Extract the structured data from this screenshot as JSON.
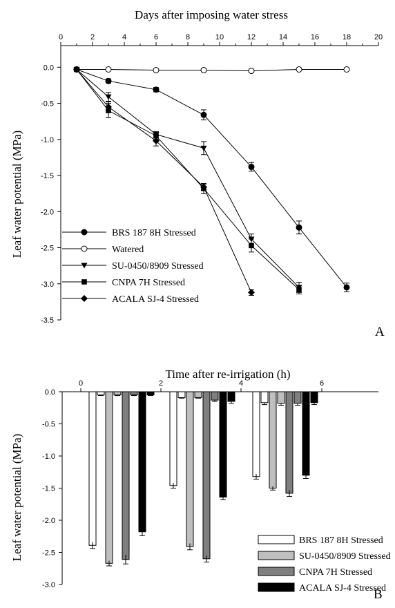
{
  "chart_data": [
    {
      "type": "line",
      "title": "Days after imposing water  stress",
      "xlabel": "Days after imposing water  stress",
      "ylabel": "Leaf water potential (MPa)",
      "xlim": [
        0,
        20
      ],
      "ylim": [
        -3.5,
        0.3
      ],
      "x_ticks": [
        "0",
        "2",
        "4",
        "6",
        "8",
        "10",
        "12",
        "14",
        "16",
        "18",
        "20"
      ],
      "y_ticks": [
        "0.0",
        "-0.5",
        "-1.0",
        "-1.5",
        "-2.0",
        "-2.5",
        "-3.0",
        "-3.5"
      ],
      "x_axis_position": "top",
      "grid": false,
      "legend_position": "bottom-left",
      "panel_label": "A",
      "series": [
        {
          "name": "BRS 187 8H Stressed",
          "marker": "filled-circle",
          "x": [
            1,
            3,
            6,
            9,
            12,
            15,
            18
          ],
          "y": [
            -0.03,
            -0.19,
            -0.31,
            -0.66,
            -1.38,
            -2.22,
            -3.05
          ],
          "err": [
            0.02,
            0.03,
            0.03,
            0.07,
            0.06,
            0.09,
            0.06
          ]
        },
        {
          "name": "Watered",
          "marker": "open-circle",
          "x": [
            1,
            3,
            6,
            9,
            12,
            15,
            18
          ],
          "y": [
            -0.03,
            -0.03,
            -0.04,
            -0.04,
            -0.05,
            -0.03,
            -0.03
          ],
          "err": [
            0.01,
            0.01,
            0.01,
            0.02,
            0.02,
            0.01,
            0.01
          ]
        },
        {
          "name": "SU-0450/8909  Stressed",
          "marker": "filled-triangle-down",
          "x": [
            1,
            3,
            6,
            9,
            12,
            15
          ],
          "y": [
            -0.03,
            -0.41,
            -0.93,
            -1.12,
            -2.38,
            -3.05
          ],
          "err": [
            0.02,
            0.06,
            0.04,
            0.09,
            0.07,
            0.07
          ]
        },
        {
          "name": "CNPA 7H Stressed",
          "marker": "filled-square",
          "x": [
            1,
            3,
            6,
            9,
            12,
            15
          ],
          "y": [
            -0.03,
            -0.6,
            -0.95,
            -1.68,
            -2.47,
            -3.08
          ],
          "err": [
            0.02,
            0.1,
            0.05,
            0.07,
            0.09,
            0.06
          ]
        },
        {
          "name": "ACALA SJ-4 Stressed",
          "marker": "filled-diamond",
          "x": [
            1,
            3,
            6,
            9,
            12
          ],
          "y": [
            -0.03,
            -0.55,
            -1.02,
            -1.66,
            -3.12
          ],
          "err": [
            0.02,
            0.07,
            0.07,
            0.04,
            0.04
          ]
        }
      ]
    },
    {
      "type": "bar",
      "title": "Time after re-irrigation (h)",
      "xlabel": "Time after re-irrigation (h)",
      "ylabel": "Leaf water potential (MPa)",
      "xlim": [
        0,
        8
      ],
      "ylim": [
        -3.0,
        0.0
      ],
      "x_ticks": [
        "0",
        "2",
        "4",
        "6"
      ],
      "y_ticks": [
        "0.0",
        "-0.5",
        "-1.0",
        "-1.5",
        "-2.0",
        "-2.5",
        "-3.0"
      ],
      "x_axis_position": "top",
      "grid": false,
      "legend_position": "bottom-right",
      "panel_label": "B",
      "group_centers": [
        0.75,
        3.25,
        6.75
      ],
      "series": [
        {
          "name": "BRS 187 8H  Stressed",
          "color": "#ffffff",
          "values": [
            -2.39,
            -1.46,
            -1.32
          ],
          "err": [
            0.05,
            0.04,
            0.04
          ],
          "control": [
            -0.05,
            -0.09,
            -0.17
          ],
          "control_err": [
            0.01,
            0.01,
            0.03
          ]
        },
        {
          "name": "SU-0450/8909 Stressed",
          "color": "#bfbfbf",
          "values": [
            -2.67,
            -2.41,
            -1.5
          ],
          "err": [
            0.04,
            0.05,
            0.03
          ],
          "control": [
            -0.05,
            -0.09,
            -0.18
          ],
          "control_err": [
            0.01,
            0.01,
            0.03
          ]
        },
        {
          "name": "CNPA 7H Stressed",
          "color": "#7f7f7f",
          "values": [
            -2.61,
            -2.6,
            -1.58
          ],
          "err": [
            0.07,
            0.05,
            0.05
          ],
          "control": [
            -0.05,
            -0.13,
            -0.18
          ],
          "control_err": [
            0.01,
            0.02,
            0.03
          ]
        },
        {
          "name": "ACALA SJ-4 Stressed",
          "color": "#000000",
          "values": [
            -2.18,
            -1.64,
            -1.3
          ],
          "err": [
            0.06,
            0.04,
            0.05
          ],
          "control": [
            -0.05,
            -0.15,
            -0.17
          ],
          "control_err": [
            0.01,
            0.03,
            0.03
          ]
        }
      ]
    }
  ]
}
